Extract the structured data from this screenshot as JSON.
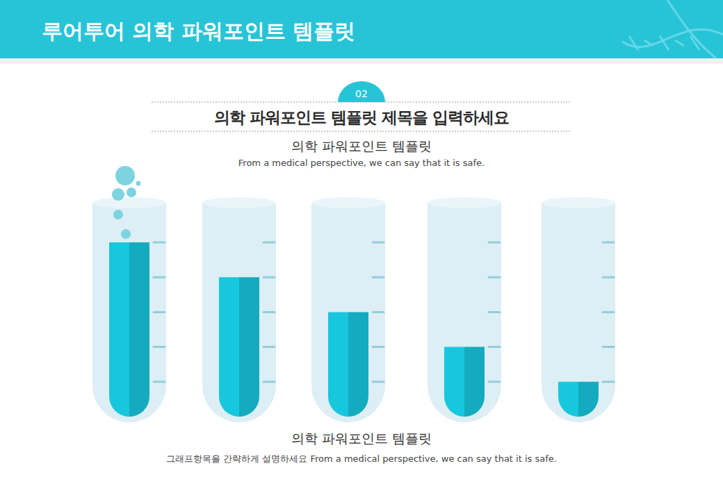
{
  "header": {
    "title": "루어투어 의학 파워포인트 템플릿",
    "badge": "02"
  },
  "chart_data": {
    "type": "bar",
    "title": "의학 파워포인트 템플릿 제목을 입력하세요",
    "subtitle": "의학 파워포인트 템플릿",
    "annotations": [
      "From a medical perspective, we can say that it is safe.",
      "의학 파워포인트 템플릿",
      "그래프항목을 간략하게 설명하세요 From a medical perspective, we can say that it is safe."
    ],
    "categories": [
      null,
      null,
      null,
      null,
      null
    ],
    "values": [
      100,
      80,
      60,
      40,
      20
    ],
    "color": "#17c7de",
    "ylim": [
      0,
      100
    ],
    "yticks": [
      20,
      40,
      60,
      80,
      100
    ],
    "tick_labels": false
  }
}
